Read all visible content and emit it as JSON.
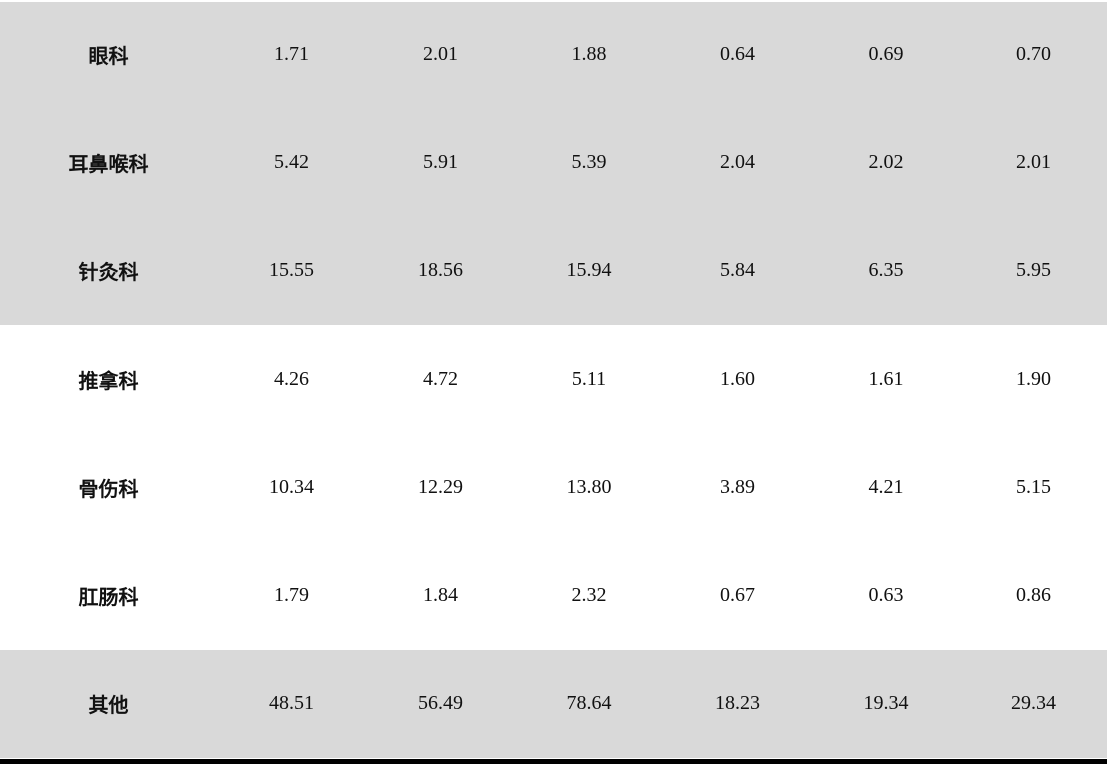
{
  "table": {
    "rows": [
      {
        "name": "眼科",
        "values": [
          "1.71",
          "2.01",
          "1.88",
          "0.64",
          "0.69",
          "0.70"
        ],
        "shaded": true
      },
      {
        "name": "耳鼻喉科",
        "values": [
          "5.42",
          "5.91",
          "5.39",
          "2.04",
          "2.02",
          "2.01"
        ],
        "shaded": true
      },
      {
        "name": "针灸科",
        "values": [
          "15.55",
          "18.56",
          "15.94",
          "5.84",
          "6.35",
          "5.95"
        ],
        "shaded": true
      },
      {
        "name": "推拿科",
        "values": [
          "4.26",
          "4.72",
          "5.11",
          "1.60",
          "1.61",
          "1.90"
        ],
        "shaded": false
      },
      {
        "name": "骨伤科",
        "values": [
          "10.34",
          "12.29",
          "13.80",
          "3.89",
          "4.21",
          "5.15"
        ],
        "shaded": false
      },
      {
        "name": "肛肠科",
        "values": [
          "1.79",
          "1.84",
          "2.32",
          "0.67",
          "0.63",
          "0.86"
        ],
        "shaded": false
      },
      {
        "name": "其他",
        "values": [
          "48.51",
          "56.49",
          "78.64",
          "18.23",
          "19.34",
          "29.34"
        ],
        "shaded": true
      }
    ]
  },
  "colors": {
    "shade": "#d9d9d9",
    "rule": "#000000"
  }
}
